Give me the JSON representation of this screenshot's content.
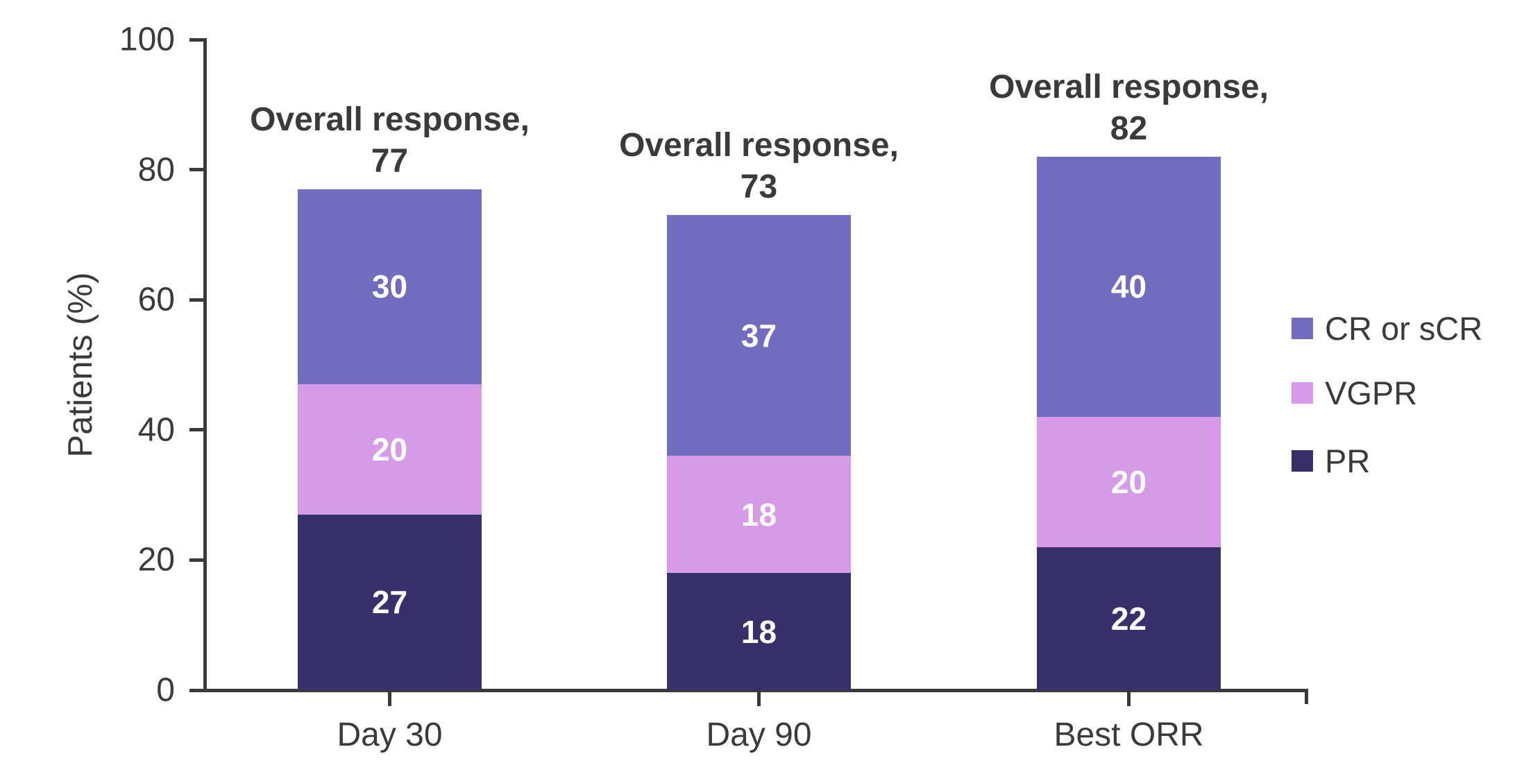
{
  "chart_data": {
    "type": "bar",
    "stacked": true,
    "categories": [
      "Day 30",
      "Day 90",
      "Best ORR"
    ],
    "series": [
      {
        "name": "PR",
        "color": "#37316b",
        "values": [
          27,
          18,
          22
        ]
      },
      {
        "name": "VGPR",
        "color": "#d69ae9",
        "values": [
          20,
          18,
          20
        ]
      },
      {
        "name": "CR or sCR",
        "color": "#716cbf",
        "values": [
          30,
          37,
          40
        ]
      }
    ],
    "totals": [
      77,
      73,
      82
    ],
    "annotation_prefix": "Overall response,",
    "ylabel": "Patients (%)",
    "ylim": [
      0,
      100
    ],
    "yticks": [
      0,
      20,
      40,
      60,
      80,
      100
    ],
    "legend": [
      "CR or sCR",
      "VGPR",
      "PR"
    ],
    "legend_position": "right",
    "grid": false,
    "bar_label_color": "#ffffff",
    "axis_color": "#3a3a3a"
  }
}
